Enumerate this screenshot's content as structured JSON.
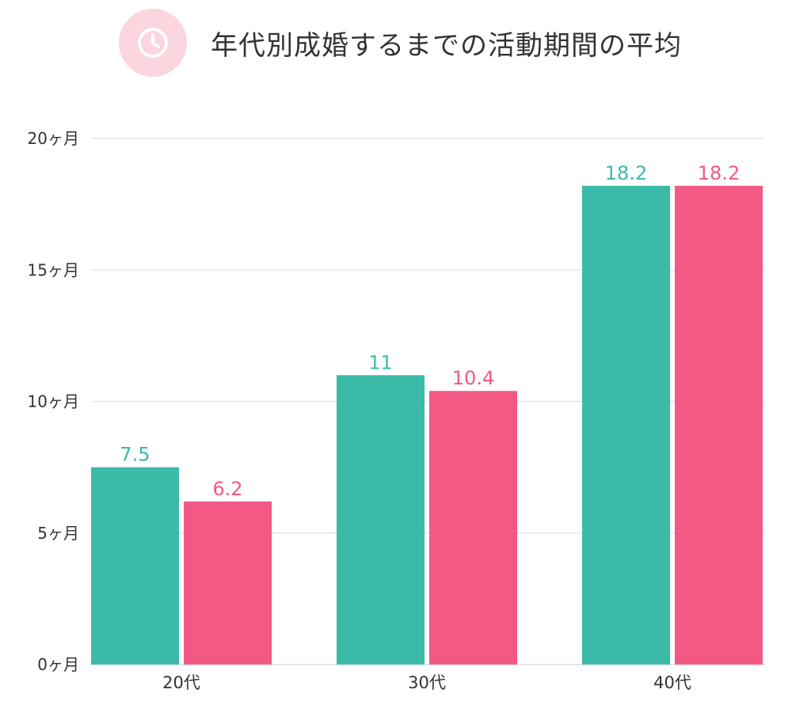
{
  "header": {
    "title": "年代別成婚するまでの活動期間の平均",
    "icon": "clock-icon"
  },
  "colors": {
    "badge_bg": "#fbd6df",
    "badge_icon": "#ffffff",
    "series_a": "#3bbaa8",
    "series_b": "#f25a85",
    "grid": "#e6e6e6",
    "axis_text": "#333333"
  },
  "chart_data": {
    "type": "bar",
    "title": "年代別成婚するまでの活動期間の平均",
    "xlabel": "",
    "ylabel": "",
    "categories": [
      "20代",
      "30代",
      "40代"
    ],
    "series": [
      {
        "name": "series-teal",
        "values": [
          7.5,
          11,
          18.2
        ],
        "labels": [
          "7.5",
          "11",
          "18.2"
        ]
      },
      {
        "name": "series-pink",
        "values": [
          6.2,
          10.4,
          18.2
        ],
        "labels": [
          "6.2",
          "10.4",
          "18.2"
        ]
      }
    ],
    "ylim": [
      0,
      20
    ],
    "yticks": [
      0,
      5,
      10,
      15,
      20
    ],
    "ytick_labels": [
      "0ヶ月",
      "5ヶ月",
      "10ヶ月",
      "15ヶ月",
      "20ヶ月"
    ],
    "grid": true,
    "legend": "none"
  }
}
